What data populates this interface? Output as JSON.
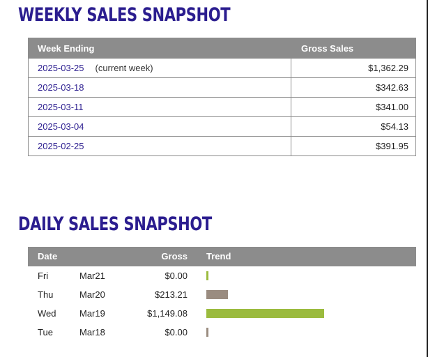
{
  "weekly": {
    "title": "WEEKLY SALES SNAPSHOT",
    "headers": {
      "week_ending": "Week Ending",
      "gross_sales": "Gross Sales"
    },
    "rows": [
      {
        "week": "2025-03-25",
        "note": "(current week)",
        "gross": "$1,362.29"
      },
      {
        "week": "2025-03-18",
        "note": "",
        "gross": "$342.63"
      },
      {
        "week": "2025-03-11",
        "note": "",
        "gross": "$341.00"
      },
      {
        "week": "2025-03-04",
        "note": "",
        "gross": "$54.13"
      },
      {
        "week": "2025-02-25",
        "note": "",
        "gross": "$391.95"
      }
    ]
  },
  "daily": {
    "title": "DAILY SALES SNAPSHOT",
    "headers": {
      "date": "Date",
      "gross": "Gross",
      "trend": "Trend"
    },
    "rows": [
      {
        "day": "Fri",
        "date": "Mar21",
        "gross": "$0.00",
        "amount": 0.0,
        "trend_color": "#9bbb3e"
      },
      {
        "day": "Thu",
        "date": "Mar20",
        "gross": "$213.21",
        "amount": 213.21,
        "trend_color": "#9a8c80"
      },
      {
        "day": "Wed",
        "date": "Mar19",
        "gross": "$1,149.08",
        "amount": 1149.08,
        "trend_color": "#9bbb3e"
      },
      {
        "day": "Tue",
        "date": "Mar18",
        "gross": "$0.00",
        "amount": 0.0,
        "trend_color": "#9a8c80"
      }
    ]
  },
  "colors": {
    "title": "#2b1d8f",
    "link": "#2b1d8f",
    "header_bg": "#8c8c8c",
    "border": "#8c8c8c"
  }
}
